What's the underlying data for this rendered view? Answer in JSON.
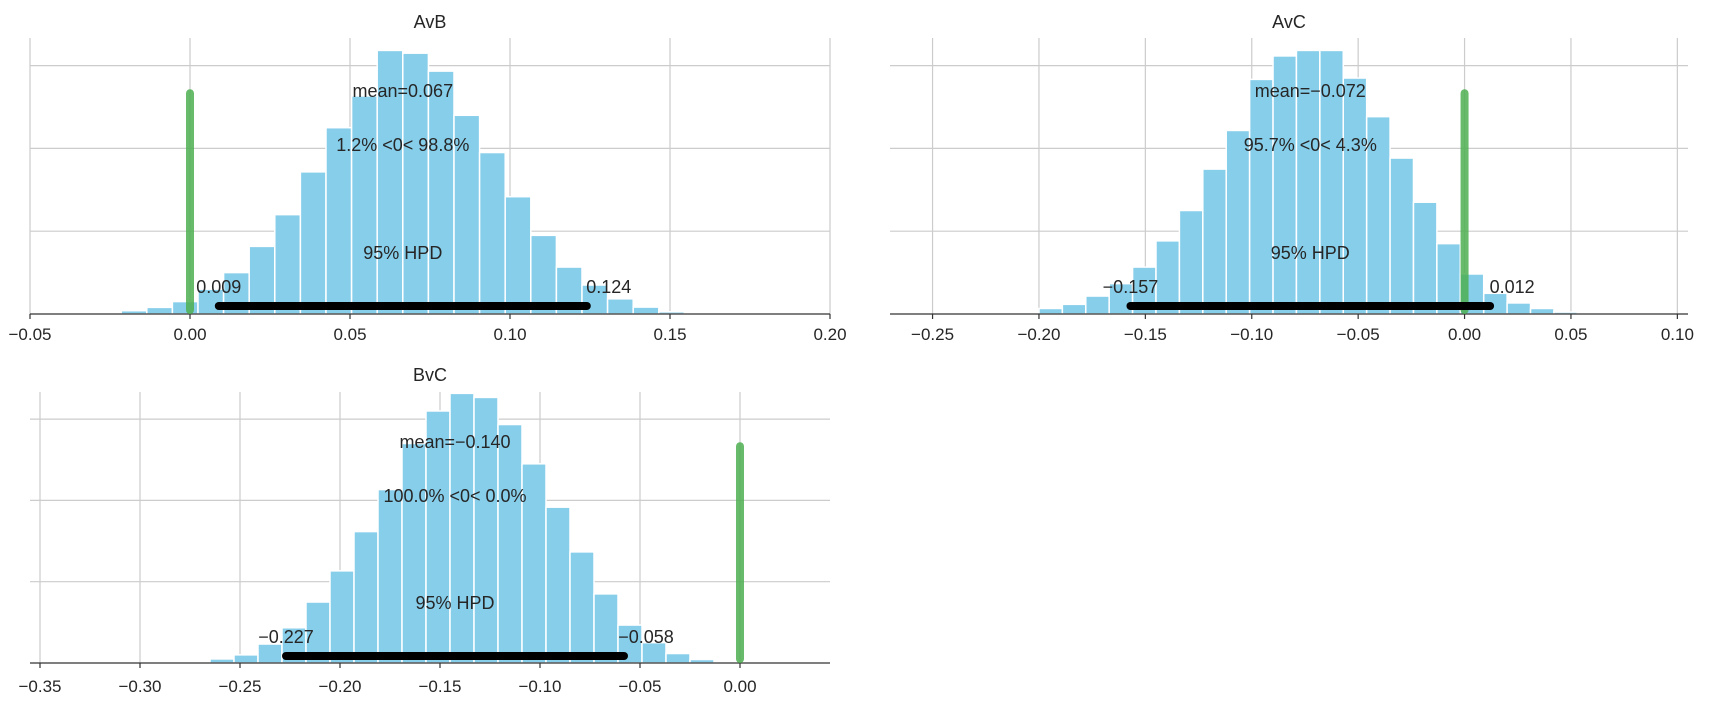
{
  "colors": {
    "bar": "#87ceeb",
    "hpd": "#000000",
    "ref_line": "#4caf50",
    "grid": "#cccccc",
    "text": "#262626"
  },
  "chart_data": [
    {
      "type": "bar",
      "title": "AvB",
      "grid": true,
      "xlim": [
        -0.05,
        0.2
      ],
      "x_ticks": [
        -0.05,
        0.0,
        0.05,
        0.1,
        0.15,
        0.2
      ],
      "x_tick_labels": [
        "−0.05",
        "0.00",
        "0.05",
        "0.10",
        "0.15",
        "0.20"
      ],
      "y_grid_fractions": [
        0.3,
        0.6,
        0.9
      ],
      "bin_edges": [
        -0.0215,
        -0.0135,
        -0.0055,
        0.0025,
        0.0105,
        0.0185,
        0.0265,
        0.0345,
        0.0425,
        0.0505,
        0.0585,
        0.0665,
        0.0745,
        0.0825,
        0.0905,
        0.0985,
        0.1065,
        0.1145,
        0.1225,
        0.1305,
        0.1385,
        0.1465,
        0.1545,
        0.1625
      ],
      "bin_heights": [
        0.012,
        0.024,
        0.045,
        0.09,
        0.15,
        0.245,
        0.36,
        0.515,
        0.675,
        0.79,
        0.955,
        0.945,
        0.88,
        0.72,
        0.585,
        0.425,
        0.285,
        0.17,
        0.105,
        0.055,
        0.025,
        0.008,
        0.003
      ],
      "reference_value": 0.0,
      "hpd_interval": [
        0.009,
        0.124
      ],
      "hpd_labels": [
        "0.009",
        "0.124"
      ],
      "mean_label": "mean=0.067",
      "ref_label": "1.2% <0< 98.8%",
      "hpd_label": "95% HPD"
    },
    {
      "type": "bar",
      "title": "AvC",
      "grid": true,
      "xlim": [
        -0.27,
        0.105
      ],
      "x_ticks": [
        -0.25,
        -0.2,
        -0.15,
        -0.1,
        -0.05,
        0.0,
        0.05,
        0.1
      ],
      "x_tick_labels": [
        "−0.25",
        "−0.20",
        "−0.15",
        "−0.10",
        "−0.05",
        "0.00",
        "0.05",
        "0.10"
      ],
      "y_grid_fractions": [
        0.3,
        0.6,
        0.9
      ],
      "bin_edges": [
        -0.2,
        -0.189,
        -0.178,
        -0.167,
        -0.156,
        -0.145,
        -0.134,
        -0.123,
        -0.112,
        -0.101,
        -0.09,
        -0.079,
        -0.068,
        -0.057,
        -0.046,
        -0.035,
        -0.024,
        -0.013,
        -0.002,
        0.009,
        0.02,
        0.031,
        0.042,
        0.053
      ],
      "bin_heights": [
        0.02,
        0.035,
        0.065,
        0.11,
        0.17,
        0.265,
        0.375,
        0.525,
        0.665,
        0.85,
        0.935,
        0.955,
        0.955,
        0.855,
        0.715,
        0.565,
        0.405,
        0.255,
        0.145,
        0.075,
        0.04,
        0.02,
        0.007
      ],
      "reference_value": 0.0,
      "hpd_interval": [
        -0.157,
        0.012
      ],
      "hpd_labels": [
        "−0.157",
        "0.012"
      ],
      "mean_label": "mean=−0.072",
      "ref_label": "95.7% <0< 4.3%",
      "hpd_label": "95% HPD"
    },
    {
      "type": "bar",
      "title": "BvC",
      "grid": true,
      "xlim": [
        -0.355,
        0.045
      ],
      "x_ticks": [
        -0.35,
        -0.3,
        -0.25,
        -0.2,
        -0.15,
        -0.1,
        -0.05,
        0.0
      ],
      "x_tick_labels": [
        "−0.35",
        "−0.30",
        "−0.25",
        "−0.20",
        "−0.15",
        "−0.10",
        "−0.05",
        "0.00"
      ],
      "y_grid_fractions": [
        0.3,
        0.6,
        0.9
      ],
      "bin_edges": [
        -0.277,
        -0.265,
        -0.253,
        -0.241,
        -0.229,
        -0.217,
        -0.205,
        -0.193,
        -0.181,
        -0.169,
        -0.157,
        -0.145,
        -0.133,
        -0.121,
        -0.109,
        -0.097,
        -0.085,
        -0.073,
        -0.061,
        -0.049,
        -0.037,
        -0.025,
        -0.013
      ],
      "bin_heights": [
        0.005,
        0.015,
        0.03,
        0.07,
        0.13,
        0.225,
        0.34,
        0.485,
        0.64,
        0.81,
        0.93,
        0.995,
        0.98,
        0.88,
        0.735,
        0.575,
        0.41,
        0.255,
        0.14,
        0.075,
        0.035,
        0.013
      ],
      "reference_value": 0.0,
      "hpd_interval": [
        -0.227,
        -0.058
      ],
      "hpd_labels": [
        "−0.227",
        "−0.058"
      ],
      "mean_label": "mean=−0.140",
      "ref_label": "100.0% <0< 0.0%",
      "hpd_label": "95% HPD"
    }
  ]
}
